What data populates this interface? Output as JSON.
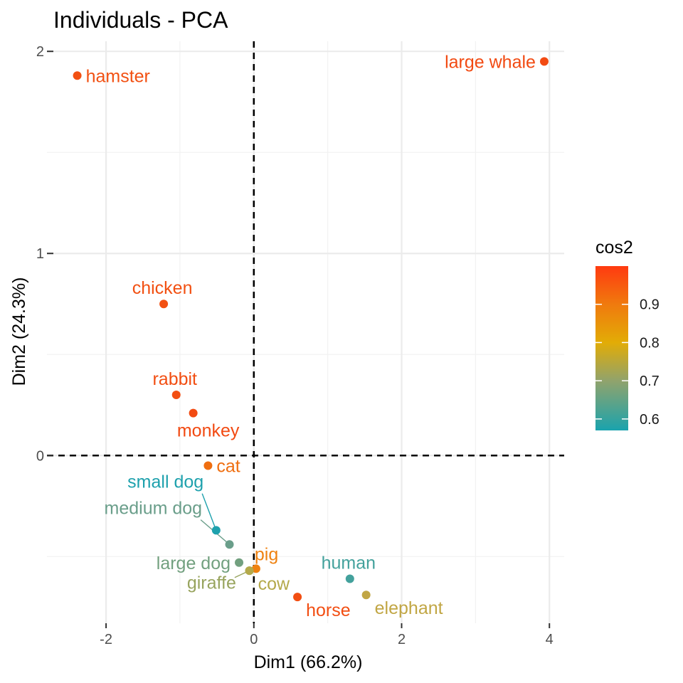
{
  "chart_data": {
    "type": "scatter",
    "title": "Individuals - PCA",
    "xlabel": "Dim1 (66.2%)",
    "ylabel": "Dim2 (24.3%)",
    "xlim": [
      -2.8,
      4.2
    ],
    "ylim": [
      -0.83,
      2.05
    ],
    "x_ticks": [
      -2,
      0,
      2,
      4
    ],
    "y_ticks": [
      0,
      1,
      2
    ],
    "grid": true,
    "reference_lines": {
      "x": 0,
      "y": 0,
      "style": "dashed"
    },
    "color_scale": {
      "name": "cos2",
      "min": 0.57,
      "max": 1.0,
      "ticks": [
        0.6,
        0.7,
        0.8,
        0.9
      ],
      "gradient": [
        {
          "value": 0.57,
          "color": "#1aa3ad"
        },
        {
          "value": 0.7,
          "color": "#91a36c"
        },
        {
          "value": 0.8,
          "color": "#e2ac06"
        },
        {
          "value": 0.9,
          "color": "#f07a0e"
        },
        {
          "value": 1.0,
          "color": "#ff3a10"
        }
      ]
    },
    "legend_position": "right",
    "points": [
      {
        "label": "large whale",
        "x": 3.93,
        "y": 1.95,
        "cos2": 0.99,
        "color": "#f24a12",
        "anchor": "left"
      },
      {
        "label": "hamster",
        "x": -2.39,
        "y": 1.88,
        "cos2": 0.97,
        "color": "#f25012",
        "anchor": "right"
      },
      {
        "label": "chicken",
        "x": -1.22,
        "y": 0.75,
        "cos2": 0.97,
        "color": "#f25012",
        "anchor": "above"
      },
      {
        "label": "rabbit",
        "x": -1.05,
        "y": 0.3,
        "cos2": 0.98,
        "color": "#f24e12",
        "anchor": "above"
      },
      {
        "label": "monkey",
        "x": -0.82,
        "y": 0.21,
        "cos2": 0.99,
        "color": "#f24a12",
        "anchor": "below"
      },
      {
        "label": "cat",
        "x": -0.62,
        "y": -0.05,
        "cos2": 0.88,
        "color": "#ef6e10",
        "anchor": "right"
      },
      {
        "label": "small dog",
        "x": -0.51,
        "y": -0.37,
        "cos2": 0.58,
        "color": "#1ea1ad",
        "anchor": "leader",
        "label_x": -0.68,
        "label_y": -0.16
      },
      {
        "label": "medium dog",
        "x": -0.33,
        "y": -0.44,
        "cos2": 0.65,
        "color": "#6a9e8a",
        "anchor": "leader",
        "label_x": -0.7,
        "label_y": -0.29
      },
      {
        "label": "large dog",
        "x": -0.2,
        "y": -0.53,
        "cos2": 0.67,
        "color": "#72a07f",
        "anchor": "left"
      },
      {
        "label": "giraffe",
        "x": -0.06,
        "y": -0.57,
        "cos2": 0.74,
        "color": "#98a45e",
        "anchor": "leader",
        "label_x": -0.24,
        "label_y": -0.66
      },
      {
        "label": "pig",
        "x": 0.03,
        "y": -0.56,
        "cos2": 0.86,
        "color": "#ef8211",
        "anchor": "above-right"
      },
      {
        "label": "cow",
        "x": -0.06,
        "y": -0.57,
        "cos2": 0.77,
        "color": "#b4a94a",
        "anchor": "below-right"
      },
      {
        "label": "human",
        "x": 1.3,
        "y": -0.61,
        "cos2": 0.62,
        "color": "#43a19c",
        "anchor": "above"
      },
      {
        "label": "horse",
        "x": 0.59,
        "y": -0.7,
        "cos2": 0.98,
        "color": "#f24e12",
        "anchor": "below-right"
      },
      {
        "label": "elephant",
        "x": 1.52,
        "y": -0.69,
        "cos2": 0.77,
        "color": "#c1a644",
        "anchor": "below-right"
      }
    ]
  }
}
